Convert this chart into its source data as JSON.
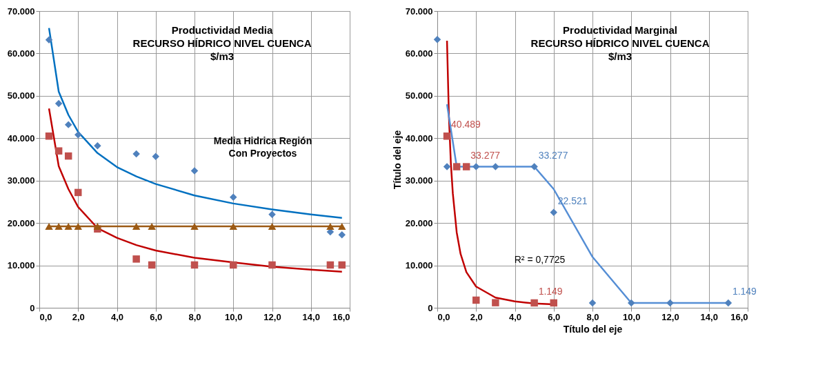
{
  "chart_data": [
    {
      "type": "scatter",
      "title": "Productividad Media\nRECURSO HÍDRICO  NIVEL CUENCA\n$/m3",
      "xlim": [
        0,
        16
      ],
      "ylim": [
        0,
        70000
      ],
      "xticks": [
        {
          "value": 0,
          "label": "0,0"
        },
        {
          "value": 2,
          "label": "2,0"
        },
        {
          "value": 4,
          "label": "4,0"
        },
        {
          "value": 6,
          "label": "6,0"
        },
        {
          "value": 8,
          "label": "8,0"
        },
        {
          "value": 10,
          "label": "10,0"
        },
        {
          "value": 12,
          "label": "12,0"
        },
        {
          "value": 14,
          "label": "14,0"
        },
        {
          "value": 16,
          "label": "16,0"
        }
      ],
      "yticks": [
        0,
        {
          "value": 10000,
          "label": "10.000"
        },
        {
          "value": 20000,
          "label": "20.000"
        },
        {
          "value": 30000,
          "label": "30.000"
        },
        {
          "value": 40000,
          "label": "40.000"
        },
        {
          "value": 50000,
          "label": "50.000"
        },
        {
          "value": 60000,
          "label": "60.000"
        },
        {
          "value": 70000,
          "label": "70.000"
        }
      ],
      "grid": true,
      "annotations": [
        "Media Hidrica Región\nCon Proyectos"
      ],
      "series": [
        {
          "type": "line",
          "color": "#0070c0",
          "line_style": "solid",
          "marker": "none",
          "x": [
            0.5,
            1,
            1.5,
            2,
            3,
            4,
            5,
            6,
            8,
            10,
            12,
            14,
            15.6
          ],
          "values": [
            66000,
            51000,
            45500,
            41500,
            36500,
            33200,
            31000,
            29200,
            26500,
            24600,
            23200,
            22000,
            21200
          ]
        },
        {
          "type": "line",
          "color": "#c00000",
          "line_style": "solid",
          "marker": "none",
          "x": [
            0.5,
            1,
            1.5,
            2,
            3,
            4,
            5,
            6,
            8,
            10,
            12,
            14,
            15.6
          ],
          "values": [
            47000,
            33400,
            28000,
            23800,
            18800,
            16500,
            14800,
            13500,
            11800,
            10700,
            9700,
            9000,
            8500
          ]
        },
        {
          "type": "scatter",
          "color": "#4f81bd",
          "marker": "diamond",
          "x": [
            0.5,
            1,
            1.5,
            2,
            3,
            5,
            6,
            8,
            10,
            12,
            15,
            15.6
          ],
          "values": [
            63200,
            48200,
            43200,
            40800,
            38200,
            36300,
            35700,
            32300,
            26100,
            22000,
            17900,
            17200
          ]
        },
        {
          "type": "scatter",
          "color": "#c0504d",
          "marker": "square",
          "x": [
            0.5,
            1,
            1.5,
            2,
            3,
            5,
            5.8,
            8,
            10,
            12,
            15,
            15.6
          ],
          "values": [
            40500,
            37000,
            35800,
            27200,
            18600,
            11500,
            10100,
            10100,
            10100,
            10100,
            10100,
            10100
          ]
        },
        {
          "type": "line",
          "color": "#9c5a14",
          "line_style": "solid",
          "marker": "triangle",
          "x": [
            0.5,
            1,
            1.5,
            2,
            3,
            5,
            5.8,
            8,
            10,
            12,
            15,
            15.6
          ],
          "values": [
            19200,
            19200,
            19200,
            19200,
            19200,
            19200,
            19200,
            19200,
            19200,
            19200,
            19200,
            19200
          ]
        }
      ]
    },
    {
      "type": "scatter",
      "title": "Productividad Marginal\nRECURSO HÍDRICO  NIVEL CUENCA\n$/m3",
      "xlabel": "Título del eje",
      "ylabel": "Título del eje",
      "xlim": [
        0,
        16
      ],
      "ylim": [
        0,
        70000
      ],
      "xticks": [
        {
          "value": 0,
          "label": "0,0"
        },
        {
          "value": 2,
          "label": "2,0"
        },
        {
          "value": 4,
          "label": "4,0"
        },
        {
          "value": 6,
          "label": "6,0"
        },
        {
          "value": 8,
          "label": "8,0"
        },
        {
          "value": 10,
          "label": "10,0"
        },
        {
          "value": 12,
          "label": "12,0"
        },
        {
          "value": 14,
          "label": "14,0"
        },
        {
          "value": 16,
          "label": "16,0"
        }
      ],
      "yticks": [
        0,
        {
          "value": 10000,
          "label": "10.000"
        },
        {
          "value": 20000,
          "label": "20.000"
        },
        {
          "value": 30000,
          "label": "30.000"
        },
        {
          "value": 40000,
          "label": "40.000"
        },
        {
          "value": 50000,
          "label": "50.000"
        },
        {
          "value": 60000,
          "label": "60.000"
        },
        {
          "value": 70000,
          "label": "70.000"
        }
      ],
      "grid": true,
      "annotations": [
        "R² = 0,7725"
      ],
      "series": [
        {
          "type": "line",
          "color": "#c00000",
          "line_style": "solid",
          "marker": "none",
          "x": [
            0.5,
            0.6,
            0.7,
            0.8,
            1,
            1.2,
            1.5,
            2,
            3,
            4,
            5,
            6
          ],
          "values": [
            63000,
            45000,
            34000,
            27000,
            17800,
            12700,
            8400,
            5000,
            2400,
            1500,
            1000,
            800
          ]
        },
        {
          "type": "line",
          "color": "#558ed5",
          "line_style": "solid",
          "marker": "none",
          "x": [
            0.5,
            1,
            5,
            6,
            8,
            10,
            15
          ],
          "values": [
            48000,
            33300,
            33300,
            28000,
            12000,
            1149,
            1149
          ]
        },
        {
          "type": "scatter",
          "color": "#4f81bd",
          "marker": "diamond",
          "x": [
            0,
            0.5,
            2,
            3,
            5,
            6,
            8,
            10,
            12,
            15
          ],
          "values": [
            63300,
            33277,
            33277,
            33277,
            33277,
            22521,
            1149,
            1149,
            1149,
            1149
          ],
          "value_labels": [
            null,
            null,
            null,
            null,
            "33.277",
            "22.521",
            null,
            null,
            null,
            "1.149"
          ]
        },
        {
          "type": "scatter",
          "color": "#c0504d",
          "marker": "square",
          "x": [
            0.5,
            1,
            1.5,
            2,
            3,
            5,
            6
          ],
          "values": [
            40489,
            33277,
            33277,
            1800,
            1200,
            1149,
            1149
          ],
          "value_labels": [
            "40.489",
            null,
            "33.277",
            null,
            null,
            "1.149",
            null
          ]
        }
      ]
    }
  ]
}
